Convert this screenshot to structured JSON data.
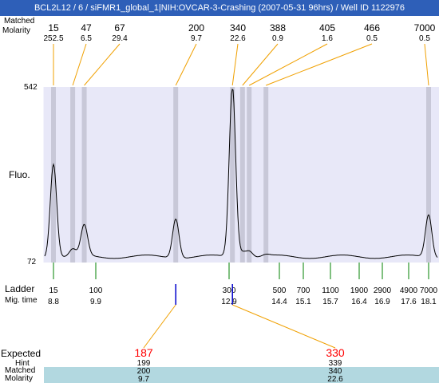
{
  "title": "BCL2L12 / 6 / siFMR1_global_1|NIH:OVCAR-3-Crashing (2007-05-31 96hrs) / Well ID 1122976",
  "top_labels": {
    "matched": "Matched",
    "molarity": "Molarity"
  },
  "y_axis": {
    "label": "Fluo.",
    "max": "542",
    "min": "72"
  },
  "bottom_labels": {
    "ladder": "Ladder",
    "mig_time": "Mig. time"
  },
  "expected_rows": {
    "expected": "Expected",
    "hint": "Hint",
    "matched": "Matched",
    "molarity": "Molarity"
  },
  "colors": {
    "title_bg": "#2e5fb8",
    "plot_bg": "#e8e8f8",
    "band": "#c8c8d8",
    "leader": "#f0a000",
    "ladder_tick": "#008000",
    "expected_tick": "#0000cc",
    "expected_text": "#ff0000",
    "row_bg": "#b2d8e0"
  },
  "chart_data": {
    "type": "line",
    "title": "BCL2L12 / 6 / siFMR1_global_1|NIH:OVCAR-3-Crashing (2007-05-31 96hrs) / Well ID 1122976",
    "ylabel": "Fluo.",
    "xlabel": "Mig. time",
    "ylim": [
      72,
      542
    ],
    "peaks": [
      {
        "size": "15",
        "molarity": "252.5",
        "time": 8.8
      },
      {
        "size": "47",
        "molarity": "6.5",
        "time": 9.3
      },
      {
        "size": "67",
        "molarity": "29.4",
        "time": 9.6
      },
      {
        "size": "200",
        "molarity": "9.7",
        "time": 11.7
      },
      {
        "size": "340",
        "molarity": "22.6",
        "time": 13.0
      },
      {
        "size": "388",
        "molarity": "0.9",
        "time": 13.3
      },
      {
        "size": "405",
        "molarity": "1.6",
        "time": 13.5
      },
      {
        "size": "466",
        "molarity": "0.5",
        "time": 14.0
      },
      {
        "size": "7000",
        "molarity": "0.5",
        "time": 18.1
      }
    ],
    "ladder": [
      {
        "size": "15",
        "time": "8.8"
      },
      {
        "size": "100",
        "time": "9.9"
      },
      {
        "size": "300",
        "time": "12.9"
      },
      {
        "size": "500",
        "time": "14.4"
      },
      {
        "size": "700",
        "time": "15.1"
      },
      {
        "size": "1100",
        "time": "15.7"
      },
      {
        "size": "1900",
        "time": "16.4"
      },
      {
        "size": "2900",
        "time": "16.9"
      },
      {
        "size": "4900",
        "time": "17.6"
      },
      {
        "size": "7000",
        "time": "18.1"
      }
    ],
    "expected": [
      {
        "expected": "187",
        "hint": "199",
        "matched": "200",
        "molarity": "9.7"
      },
      {
        "expected": "330",
        "hint": "339",
        "matched": "340",
        "molarity": "22.6"
      }
    ]
  }
}
